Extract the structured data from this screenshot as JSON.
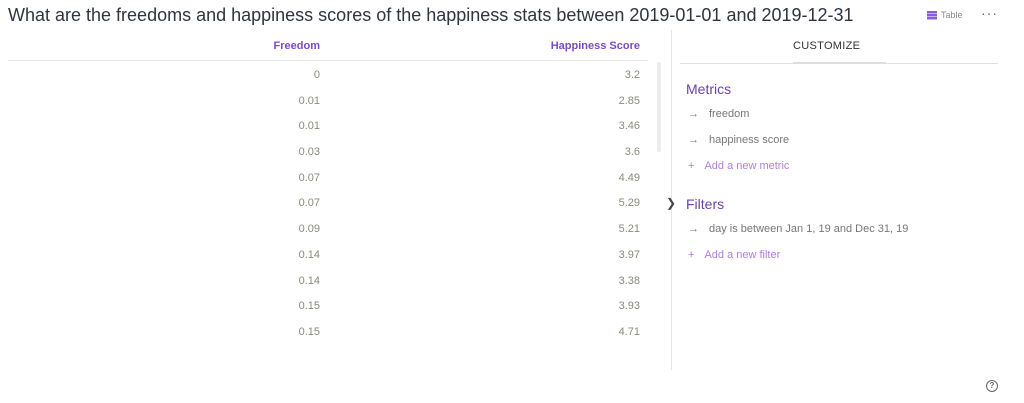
{
  "title": "What are the freedoms and happiness scores of the happiness stats between 2019-01-01 and 2019-12-31",
  "view_label": "Table",
  "more": "···",
  "table": {
    "columns": [
      "Freedom",
      "Happiness Score"
    ],
    "rows": [
      [
        "0",
        "3.2"
      ],
      [
        "0.01",
        "2.85"
      ],
      [
        "0.01",
        "3.46"
      ],
      [
        "0.03",
        "3.6"
      ],
      [
        "0.07",
        "4.49"
      ],
      [
        "0.07",
        "5.29"
      ],
      [
        "0.09",
        "5.21"
      ],
      [
        "0.14",
        "3.97"
      ],
      [
        "0.14",
        "3.38"
      ],
      [
        "0.15",
        "3.93"
      ],
      [
        "0.15",
        "4.71"
      ]
    ]
  },
  "panel": {
    "tab": "CUSTOMIZE",
    "metrics_title": "Metrics",
    "metrics": [
      "freedom",
      "happiness score"
    ],
    "add_metric": "Add a new metric",
    "filters_title": "Filters",
    "filters": [
      "day is between Jan 1, 19 and Dec 31, 19"
    ],
    "add_filter": "Add a new filter"
  },
  "help": "?"
}
